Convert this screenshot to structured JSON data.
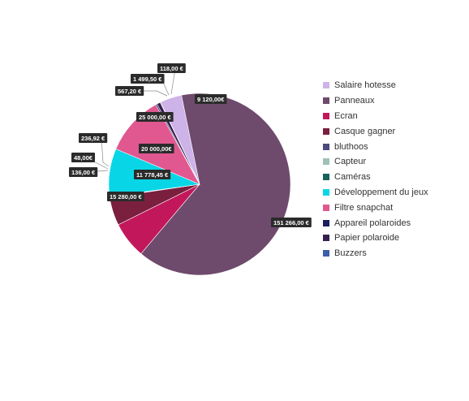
{
  "chart_data": {
    "type": "pie",
    "legend_position": "right",
    "slices": [
      {
        "name": "Salaire hotesse",
        "value": 9120,
        "label": "9 120,00€",
        "color": "#cdb3e8"
      },
      {
        "name": "Panneaux",
        "value": 151266,
        "label": "151 266,00 €",
        "color": "#6e4a6c"
      },
      {
        "name": "Ecran",
        "value": 15280,
        "label": "15 280,00 €",
        "color": "#c2185b"
      },
      {
        "name": "Casque gagner",
        "value": 11778.45,
        "label": "11 778,45 €",
        "color": "#7a1f3d"
      },
      {
        "name": "bluthoos",
        "value": 136,
        "label": "136,00 €",
        "color": "#4b4b7c"
      },
      {
        "name": "Capteur",
        "value": 48,
        "label": "48,00€",
        "color": "#9ec2b5"
      },
      {
        "name": "Caméras",
        "value": 236.92,
        "label": "236,92 €",
        "color": "#16625c"
      },
      {
        "name": "Développement du jeux",
        "value": 20000,
        "label": "20 000,00€",
        "color": "#08d6e6"
      },
      {
        "name": "Filtre snapchat",
        "value": 25000,
        "label": "25 000,00 €",
        "color": "#e0588f"
      },
      {
        "name": "Appareil polaroides",
        "value": 567.2,
        "label": "567,20 €",
        "color": "#1b1f5e"
      },
      {
        "name": "Papier polaroide",
        "value": 1499.5,
        "label": "1 499,50 €",
        "color": "#37204f"
      },
      {
        "name": "Buzzers",
        "value": 118,
        "label": "118,00 €",
        "color": "#3d5fa8"
      }
    ]
  }
}
